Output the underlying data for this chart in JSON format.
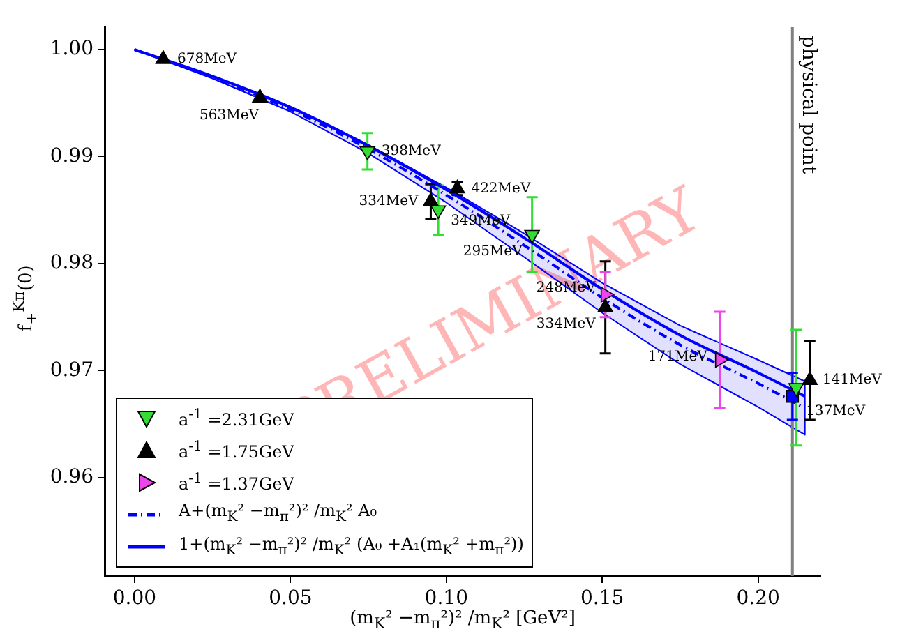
{
  "chart_data": {
    "type": "scatter",
    "xlabel": "(m$_{K}$² −m$_{π}$²)² /m$_{K}$² [GeV²]",
    "ylabel": "f$_{+}$$^{Kπ}$(0)",
    "xlim": [
      -0.0096,
      0.22
    ],
    "ylim": [
      0.9508,
      1.0021
    ],
    "xticks": [
      {
        "value": 0,
        "label": "0.00"
      },
      {
        "value": 0.05,
        "label": "0.05"
      },
      {
        "value": 0.1,
        "label": "0.10"
      },
      {
        "value": 0.15,
        "label": "0.15"
      },
      {
        "value": 0.2,
        "label": "0.20"
      }
    ],
    "yticks": [
      {
        "value": 0.96,
        "label": "0.96"
      },
      {
        "value": 0.97,
        "label": "0.97"
      },
      {
        "value": 0.98,
        "label": "0.98"
      },
      {
        "value": 0.99,
        "label": "0.99"
      },
      {
        "value": 1,
        "label": "1.00"
      }
    ],
    "grid": false,
    "legend": "bottom left",
    "series": [
      {
        "name": "a$^{-1}$ =2.31GeV",
        "type": "scatter",
        "marker": "triangle-down",
        "color": "#33dd33",
        "x": [
          0.0747,
          0.0974,
          0.1275,
          0.2122
        ],
        "values": [
          0.9905,
          0.985,
          0.9827,
          0.9684
        ],
        "errors": [
          0.0017,
          0.0023,
          0.0035,
          0.0054
        ]
      },
      {
        "name": "a$^{-1}$ =1.75GeV",
        "type": "scatter",
        "marker": "triangle",
        "color": "#000000",
        "x": [
          0.0092,
          0.0402,
          0.095,
          0.1035,
          0.151,
          0.2166
        ],
        "values": [
          0.9991,
          0.9955,
          0.9858,
          0.987,
          0.9759,
          0.9691
        ],
        "errors": [
          null,
          null,
          0.0016,
          0.0006,
          0.0043,
          0.0037
        ]
      },
      {
        "name": "a$^{-1}$ =1.37GeV",
        "type": "scatter",
        "marker": "triangle-right",
        "color": "#ee44ee",
        "x": [
          0.151,
          0.1877
        ],
        "values": [
          0.9771,
          0.971
        ],
        "errors": [
          0.0021,
          0.0045
        ]
      },
      {
        "name": "A+(m$_{K}$² −m$_{π}$²)² /m$_{K}$² A₀",
        "type": "line",
        "line_style": "dashed",
        "color": "#0000ff",
        "x": [
          0,
          0.025,
          0.05,
          0.075,
          0.1,
          0.125,
          0.15,
          0.175,
          0.2,
          0.215
        ],
        "values": [
          1.0,
          0.9974,
          0.9944,
          0.9907,
          0.9864,
          0.9817,
          0.9768,
          0.9724,
          0.9688,
          0.9665
        ],
        "lower": [
          1.0,
          0.9973,
          0.9942,
          0.9903,
          0.9857,
          0.9806,
          0.9754,
          0.9706,
          0.9666,
          0.964
        ],
        "upper": [
          1.0,
          0.9975,
          0.9946,
          0.9911,
          0.9871,
          0.9828,
          0.9782,
          0.9742,
          0.971,
          0.969
        ]
      },
      {
        "name": "1+(m$_{K}$² −m$_{π}$²)² /m$_{K}$² (A₀ +A₁(m$_{K}$² +m$_{π}$²))",
        "type": "line",
        "line_style": "solid",
        "color": "#0000ff",
        "x": [
          0,
          0.025,
          0.05,
          0.075,
          0.1,
          0.125,
          0.15,
          0.175,
          0.2,
          0.215
        ],
        "values": [
          1.0,
          0.9975,
          0.9946,
          0.991,
          0.9869,
          0.9824,
          0.9776,
          0.9733,
          0.9698,
          0.9676
        ]
      },
      {
        "type": "scatter",
        "marker": "square",
        "color": "#0000ff",
        "x": [
          0.211
        ],
        "values": [
          0.9676
        ],
        "errors": [
          0.0022
        ]
      }
    ],
    "ref_lines": [
      {
        "axis": "x",
        "value": 0.211,
        "label": "physical point",
        "color": "#808080"
      }
    ],
    "annotations": [
      {
        "text": "678MeV",
        "x": 0.0092,
        "y": 0.9991
      },
      {
        "text": "563MeV",
        "x": 0.0402,
        "y": 0.9955
      },
      {
        "text": "398MeV",
        "x": 0.0747,
        "y": 0.9905
      },
      {
        "text": "334MeV",
        "x": 0.095,
        "y": 0.9858
      },
      {
        "text": "422MeV",
        "x": 0.1035,
        "y": 0.987
      },
      {
        "text": "349MeV",
        "x": 0.0974,
        "y": 0.985
      },
      {
        "text": "295MeV",
        "x": 0.1275,
        "y": 0.9827
      },
      {
        "text": "248MeV",
        "x": 0.151,
        "y": 0.9771
      },
      {
        "text": "334MeV",
        "x": 0.151,
        "y": 0.9759
      },
      {
        "text": "171MeV",
        "x": 0.1877,
        "y": 0.971
      },
      {
        "text": "141MeV",
        "x": 0.2166,
        "y": 0.9691
      },
      {
        "text": "137MeV",
        "x": 0.2122,
        "y": 0.9684
      },
      "PRELIMINARY"
    ]
  }
}
